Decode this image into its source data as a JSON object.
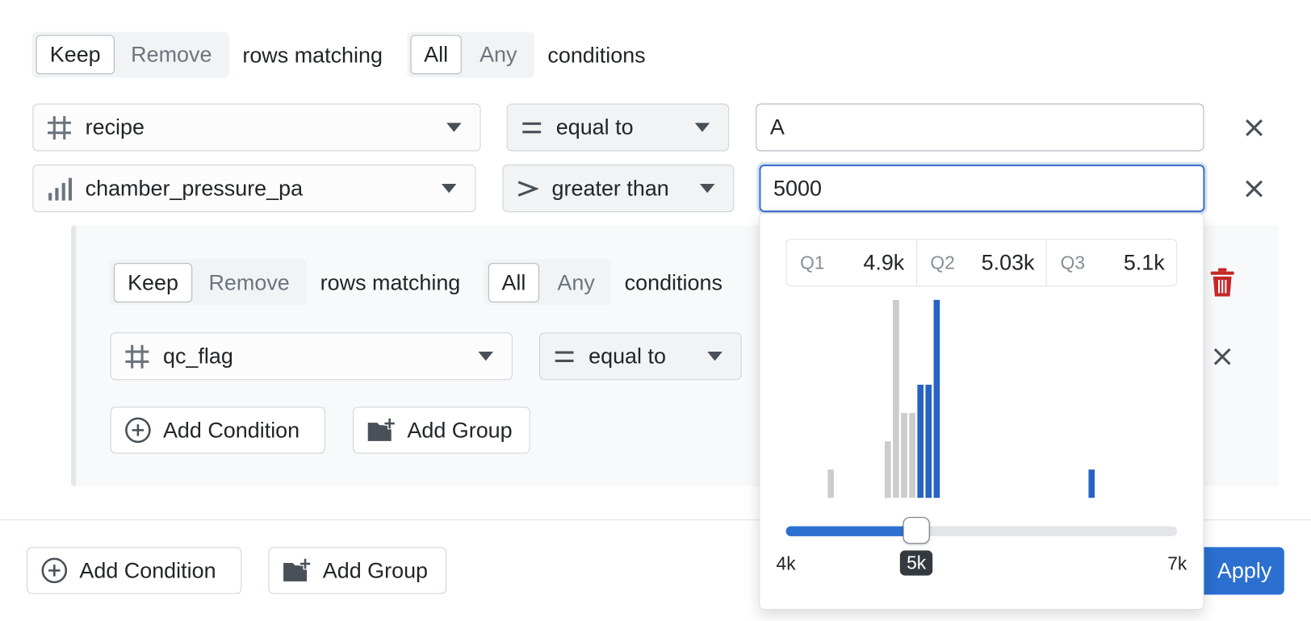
{
  "filter": {
    "mode": [
      "Keep",
      "Remove"
    ],
    "rows_matching": "rows matching",
    "match": [
      "All",
      "Any"
    ],
    "conditions_label": "conditions",
    "conditions": [
      {
        "field": "recipe",
        "operator": "equal to",
        "value": "A"
      },
      {
        "field": "chamber_pressure_pa",
        "operator": "greater than",
        "value": "5000"
      }
    ],
    "group": {
      "mode": [
        "Keep",
        "Remove"
      ],
      "rows_matching": "rows matching",
      "match": [
        "All",
        "Any"
      ],
      "conditions_label": "conditions",
      "conditions": [
        {
          "field": "qc_flag",
          "operator": "equal to"
        }
      ],
      "add_condition": "Add Condition",
      "add_group": "Add Group"
    },
    "add_condition": "Add Condition",
    "add_group": "Add Group",
    "apply": "Apply"
  },
  "popup": {
    "quartiles": [
      {
        "label": "Q1",
        "value": "4.9k"
      },
      {
        "label": "Q2",
        "value": "5.03k"
      },
      {
        "label": "Q3",
        "value": "5.1k"
      }
    ],
    "histogram": {
      "below_color": "#cccccc",
      "above_color": "#2563c4",
      "bars": [
        {
          "x0": 4312.5,
          "x1": 4375,
          "count": 1
        },
        {
          "x0": 4750,
          "x1": 4812.5,
          "count": 2
        },
        {
          "x0": 4812.5,
          "x1": 4875,
          "count": 7
        },
        {
          "x0": 4875,
          "x1": 4937.5,
          "count": 3
        },
        {
          "x0": 4937.5,
          "x1": 5000,
          "count": 3
        },
        {
          "x0": 5000,
          "x1": 5062.5,
          "count": 4
        },
        {
          "x0": 5062.5,
          "x1": 5125,
          "count": 4
        },
        {
          "x0": 5125,
          "x1": 5187.5,
          "count": 7
        },
        {
          "x0": 6312.5,
          "x1": 6375,
          "count": 1
        }
      ]
    },
    "slider": {
      "min": {
        "value": 4000,
        "label": "4k"
      },
      "max": {
        "value": 7000,
        "label": "7k"
      },
      "value": {
        "value": 5000,
        "label": "5k"
      }
    }
  }
}
